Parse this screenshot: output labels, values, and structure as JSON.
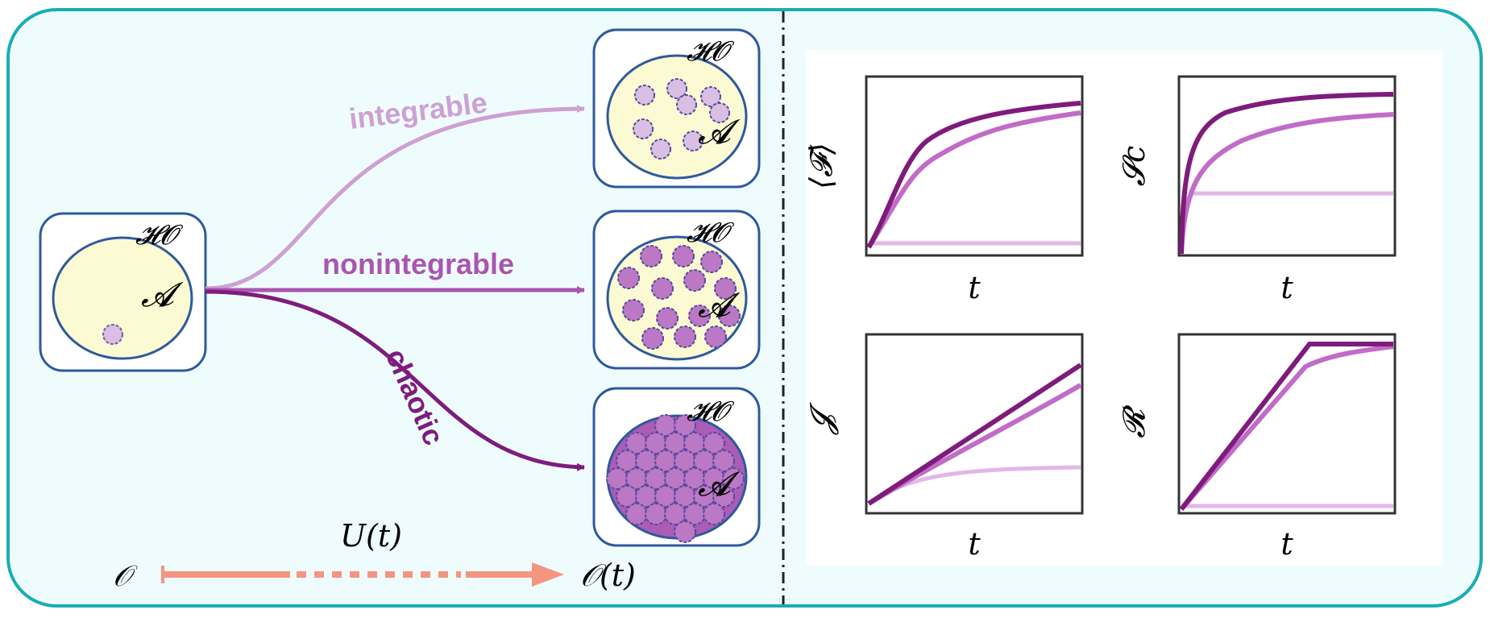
{
  "colors": {
    "panel_bg": "#eefcfd",
    "panel_border": "#19adb4",
    "box_border": "#2e5a9c",
    "ellipse_fill": "#fbfad2",
    "integrable": "#cfa0d4",
    "nonintegrable": "#aa55b0",
    "chaotic": "#7e1c7c",
    "blob_fill_light": "#d9bfe3",
    "blob_fill_mid": "#bb78c5",
    "blob_fill_dark": "#aa5cb6",
    "arrow_U": "#f49580",
    "plot_frame": "#333333"
  },
  "diagram": {
    "initial_box": {
      "space_label": "𝓗𝓞",
      "subspace_label": "𝓐"
    },
    "routes": [
      {
        "name": "integrable",
        "label": "integrable",
        "space_label": "𝓗𝓞",
        "subspace_label": "𝓐"
      },
      {
        "name": "nonintegrable",
        "label": "nonintegrable",
        "space_label": "𝓗𝓞",
        "subspace_label": "𝓐"
      },
      {
        "name": "chaotic",
        "label": "chaotic",
        "space_label": "𝓗𝓞",
        "subspace_label": "𝓐"
      }
    ],
    "evolution": {
      "start_label": "𝒪",
      "operator_label": "U(t)",
      "end_label": "𝒪(t)"
    }
  },
  "plots": [
    {
      "ylabel": "⟨𝓕⟩",
      "xlabel": "t"
    },
    {
      "ylabel": "𝓢c",
      "xlabel": "t"
    },
    {
      "ylabel": "𝓙",
      "xlabel": "t"
    },
    {
      "ylabel": "𝓡",
      "xlabel": "t"
    }
  ]
}
